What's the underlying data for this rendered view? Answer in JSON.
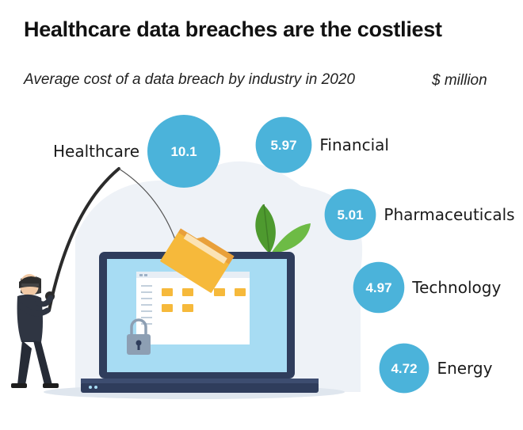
{
  "header": {
    "title": "Healthcare data breaches are the costliest",
    "subtitle": "Average cost of a data breach by industry in 2020",
    "unit": "$ million"
  },
  "chart_data": {
    "type": "bubble",
    "title": "Healthcare data breaches are the costliest",
    "subtitle": "Average cost of a data breach by industry in 2020",
    "unit": "$ million",
    "categories": [
      "Healthcare",
      "Financial",
      "Pharmaceuticals",
      "Technology",
      "Energy"
    ],
    "values": [
      10.1,
      5.97,
      5.01,
      4.97,
      4.72
    ],
    "value_labels": [
      "10.1",
      "5.97",
      "5.01",
      "4.97",
      "4.72"
    ],
    "bubble_color": "#4bb3da"
  },
  "illustration": {
    "description_icons": [
      "hacker-icon",
      "fishing-rod-icon",
      "folder-icon",
      "laptop-icon",
      "padlock-icon",
      "plant-icon"
    ],
    "colors": {
      "laptop_frame": "#2f3d5c",
      "screen": "#a7dcf3",
      "folder": "#f6b93b",
      "plant": "#5fa83a",
      "shadow": "#dfe6ee"
    }
  }
}
